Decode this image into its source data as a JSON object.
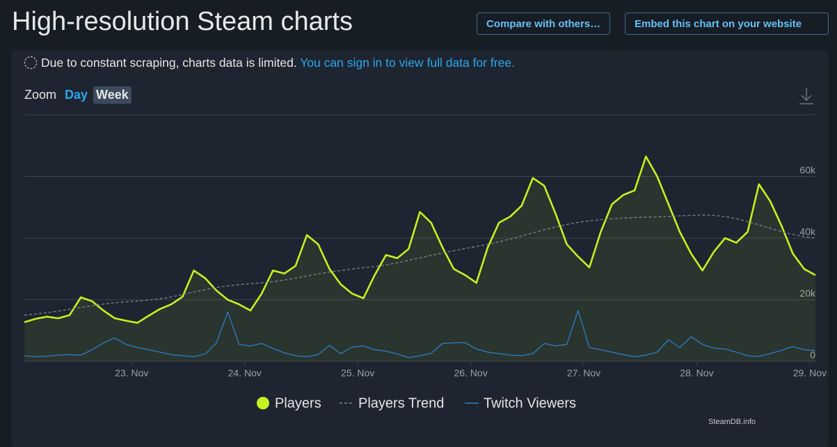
{
  "header": {
    "title": "High-resolution Steam charts",
    "buttons": [
      "Compare with others…",
      "Embed this chart on your website"
    ]
  },
  "notice": {
    "text": "Due to constant scraping, charts data is limited.",
    "link": "You can sign in to view full data for free."
  },
  "zoom": {
    "label": "Zoom",
    "options": [
      "Day",
      "Week"
    ]
  },
  "chart_data": {
    "type": "line",
    "x": [
      22.05,
      22.15,
      22.25,
      22.35,
      22.45,
      22.55,
      22.65,
      22.75,
      22.85,
      22.95,
      23.05,
      23.15,
      23.25,
      23.35,
      23.45,
      23.55,
      23.65,
      23.75,
      23.85,
      23.95,
      24.05,
      24.15,
      24.25,
      24.35,
      24.45,
      24.55,
      24.65,
      24.75,
      24.85,
      24.95,
      25.05,
      25.15,
      25.25,
      25.35,
      25.45,
      25.55,
      25.65,
      25.75,
      25.85,
      25.95,
      26.05,
      26.15,
      26.25,
      26.35,
      26.45,
      26.55,
      26.65,
      26.75,
      26.85,
      26.95,
      27.05,
      27.15,
      27.25,
      27.35,
      27.45,
      27.55,
      27.65,
      27.75,
      27.85,
      27.95,
      28.05,
      28.15,
      28.25,
      28.35,
      28.45,
      28.55,
      28.65,
      28.75,
      28.85,
      28.95,
      29.05
    ],
    "xlim": [
      22.05,
      29.05
    ],
    "xticks": [
      {
        "value": 23,
        "label": "23. Nov"
      },
      {
        "value": 24,
        "label": "24. Nov"
      },
      {
        "value": 25,
        "label": "25. Nov"
      },
      {
        "value": 26,
        "label": "26. Nov"
      },
      {
        "value": 27,
        "label": "27. Nov"
      },
      {
        "value": 28,
        "label": "28. Nov"
      },
      {
        "value": 29,
        "label": "29. Nov"
      }
    ],
    "ylim": [
      0,
      80000
    ],
    "yticks": [
      0,
      {
        "value": 20000,
        "label": "20k"
      },
      {
        "value": 40000,
        "label": "40k"
      },
      {
        "value": 60000,
        "label": "60k"
      }
    ],
    "grid": true,
    "series": [
      {
        "name": "Players",
        "color": "#c3f321",
        "line_style": "solid",
        "fill": true,
        "values": [
          12700,
          13800,
          14500,
          14000,
          15000,
          20800,
          19500,
          16500,
          14000,
          13200,
          12500,
          14800,
          17000,
          18500,
          21000,
          29500,
          27000,
          23000,
          20000,
          18500,
          16500,
          22000,
          29500,
          28500,
          31000,
          41000,
          38000,
          30000,
          25000,
          22000,
          20500,
          28000,
          34500,
          33500,
          36500,
          48500,
          45000,
          37000,
          30000,
          28000,
          25500,
          37000,
          45000,
          47000,
          50500,
          59500,
          57000,
          48000,
          38000,
          34000,
          30500,
          42000,
          51000,
          54000,
          55500,
          66500,
          60000,
          51000,
          42000,
          35000,
          29500,
          35500,
          40000,
          38500,
          42000,
          57500,
          52000,
          44000,
          35000,
          30000,
          28000
        ]
      },
      {
        "name": "Players Trend",
        "color": "#7d8490",
        "line_style": "dashed",
        "fill": false,
        "values": [
          15000,
          15400,
          15800,
          16300,
          16900,
          17500,
          18100,
          18600,
          19000,
          19300,
          19600,
          19900,
          20300,
          20900,
          21700,
          22500,
          23300,
          24000,
          24500,
          24900,
          25200,
          25500,
          25900,
          26400,
          27000,
          27700,
          28400,
          29000,
          29500,
          30000,
          30400,
          30800,
          31300,
          32000,
          32800,
          33600,
          34400,
          35200,
          35900,
          36600,
          37300,
          38000,
          38800,
          39700,
          40700,
          41700,
          42700,
          43600,
          44400,
          45100,
          45600,
          46000,
          46300,
          46500,
          46700,
          46800,
          46900,
          47000,
          47200,
          47400,
          47500,
          47400,
          47000,
          46300,
          45400,
          44300,
          43200,
          42100,
          41200,
          40500,
          40000
        ]
      },
      {
        "name": "Twitch Viewers",
        "color": "#2b7ec8",
        "line_style": "solid",
        "fill": false,
        "values": [
          1800,
          1500,
          1700,
          2000,
          2200,
          2000,
          3800,
          6000,
          7600,
          5500,
          4500,
          3800,
          3000,
          2200,
          1800,
          1500,
          2400,
          6000,
          16000,
          5500,
          5000,
          5800,
          4200,
          2800,
          1800,
          1500,
          2200,
          5200,
          2500,
          4600,
          5000,
          3800,
          3300,
          2400,
          1200,
          1800,
          2600,
          5800,
          6000,
          6100,
          4000,
          3000,
          2500,
          2000,
          1800,
          2500,
          5800,
          5000,
          5500,
          16500,
          4500,
          3800,
          3000,
          2200,
          1500,
          2000,
          3000,
          7000,
          4500,
          8000,
          5500,
          4300,
          4000,
          3000,
          1800,
          1600,
          2500,
          3600,
          4800,
          3800,
          3500
        ]
      }
    ],
    "credit": "SteamDB.info"
  }
}
